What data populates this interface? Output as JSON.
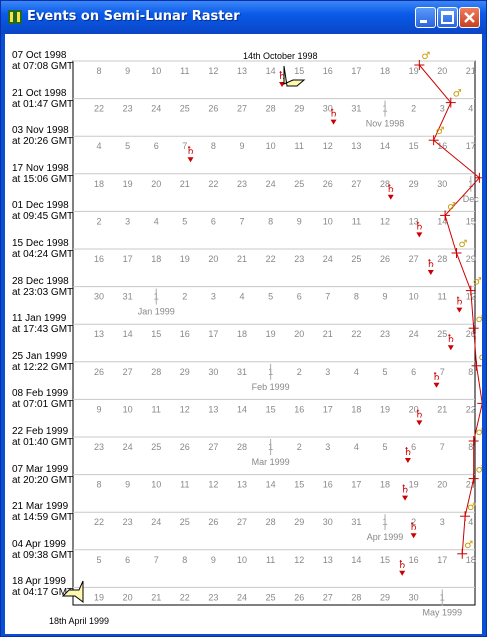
{
  "window": {
    "title": "Events on Semi-Lunar Raster"
  },
  "raster": {
    "rows": [
      {
        "date": "07 Oct  1998",
        "time": "at 07:08 GMT",
        "ticks": [
          {
            "t": "8"
          },
          {
            "t": "9"
          },
          {
            "t": "10"
          },
          {
            "t": "11"
          },
          {
            "t": "12"
          },
          {
            "t": "13"
          },
          {
            "t": "14"
          },
          {
            "t": "15"
          },
          {
            "t": "16"
          },
          {
            "t": "17"
          },
          {
            "t": "18"
          },
          {
            "t": "19"
          },
          {
            "t": "20"
          },
          {
            "t": "21"
          }
        ]
      },
      {
        "date": "21 Oct  1998",
        "time": "at 01:47 GMT",
        "ticks": [
          {
            "t": "22"
          },
          {
            "t": "23"
          },
          {
            "t": "24"
          },
          {
            "t": "25"
          },
          {
            "t": "26"
          },
          {
            "t": "27"
          },
          {
            "t": "28"
          },
          {
            "t": "29"
          },
          {
            "t": "30"
          },
          {
            "t": "31"
          },
          {
            "t": "1",
            "m": "Nov  1998"
          },
          {
            "t": "2"
          },
          {
            "t": "3"
          },
          {
            "t": "4"
          }
        ]
      },
      {
        "date": "03 Nov  1998",
        "time": "at 20:26 GMT",
        "ticks": [
          {
            "t": "4"
          },
          {
            "t": "5"
          },
          {
            "t": "6"
          },
          {
            "t": "7"
          },
          {
            "t": "8"
          },
          {
            "t": "9"
          },
          {
            "t": "10"
          },
          {
            "t": "11"
          },
          {
            "t": "12"
          },
          {
            "t": "13"
          },
          {
            "t": "14"
          },
          {
            "t": "15"
          },
          {
            "t": "16"
          },
          {
            "t": "17"
          }
        ]
      },
      {
        "date": "17 Nov  1998",
        "time": "at 15:06 GMT",
        "ticks": [
          {
            "t": "18"
          },
          {
            "t": "19"
          },
          {
            "t": "20"
          },
          {
            "t": "21"
          },
          {
            "t": "22"
          },
          {
            "t": "23"
          },
          {
            "t": "24"
          },
          {
            "t": "25"
          },
          {
            "t": "26"
          },
          {
            "t": "27"
          },
          {
            "t": "28"
          },
          {
            "t": "29"
          },
          {
            "t": "30"
          },
          {
            "t": "1",
            "m": "Dec"
          }
        ]
      },
      {
        "date": "01 Dec  1998",
        "time": "at 09:45 GMT",
        "ticks": [
          {
            "t": "2"
          },
          {
            "t": "3"
          },
          {
            "t": "4"
          },
          {
            "t": "5"
          },
          {
            "t": "6"
          },
          {
            "t": "7"
          },
          {
            "t": "8"
          },
          {
            "t": "9"
          },
          {
            "t": "10"
          },
          {
            "t": "11"
          },
          {
            "t": "12"
          },
          {
            "t": "13"
          },
          {
            "t": "14"
          },
          {
            "t": "15"
          }
        ]
      },
      {
        "date": "15 Dec  1998",
        "time": "at 04:24 GMT",
        "ticks": [
          {
            "t": "16"
          },
          {
            "t": "17"
          },
          {
            "t": "18"
          },
          {
            "t": "19"
          },
          {
            "t": "20"
          },
          {
            "t": "21"
          },
          {
            "t": "22"
          },
          {
            "t": "23"
          },
          {
            "t": "24"
          },
          {
            "t": "25"
          },
          {
            "t": "26"
          },
          {
            "t": "27"
          },
          {
            "t": "28"
          },
          {
            "t": "29"
          }
        ]
      },
      {
        "date": "28 Dec  1998",
        "time": "at 23:03 GMT",
        "ticks": [
          {
            "t": "30"
          },
          {
            "t": "31"
          },
          {
            "t": "1",
            "m": "Jan  1999"
          },
          {
            "t": "2"
          },
          {
            "t": "3"
          },
          {
            "t": "4"
          },
          {
            "t": "5"
          },
          {
            "t": "6"
          },
          {
            "t": "7"
          },
          {
            "t": "8"
          },
          {
            "t": "9"
          },
          {
            "t": "10"
          },
          {
            "t": "11"
          },
          {
            "t": "12"
          }
        ]
      },
      {
        "date": "11 Jan  1999",
        "time": "at 17:43 GMT",
        "ticks": [
          {
            "t": "13"
          },
          {
            "t": "14"
          },
          {
            "t": "15"
          },
          {
            "t": "16"
          },
          {
            "t": "17"
          },
          {
            "t": "18"
          },
          {
            "t": "19"
          },
          {
            "t": "20"
          },
          {
            "t": "21"
          },
          {
            "t": "22"
          },
          {
            "t": "23"
          },
          {
            "t": "24"
          },
          {
            "t": "25"
          },
          {
            "t": "26"
          }
        ]
      },
      {
        "date": "25 Jan  1999",
        "time": "at 12:22 GMT",
        "ticks": [
          {
            "t": "26"
          },
          {
            "t": "27"
          },
          {
            "t": "28"
          },
          {
            "t": "29"
          },
          {
            "t": "30"
          },
          {
            "t": "31"
          },
          {
            "t": "1",
            "m": "Feb  1999"
          },
          {
            "t": "2"
          },
          {
            "t": "3"
          },
          {
            "t": "4"
          },
          {
            "t": "5"
          },
          {
            "t": "6"
          },
          {
            "t": "7"
          },
          {
            "t": "8"
          }
        ]
      },
      {
        "date": "08 Feb  1999",
        "time": "at 07:01 GMT",
        "ticks": [
          {
            "t": "9"
          },
          {
            "t": "10"
          },
          {
            "t": "11"
          },
          {
            "t": "12"
          },
          {
            "t": "13"
          },
          {
            "t": "14"
          },
          {
            "t": "15"
          },
          {
            "t": "16"
          },
          {
            "t": "17"
          },
          {
            "t": "18"
          },
          {
            "t": "19"
          },
          {
            "t": "20"
          },
          {
            "t": "21"
          },
          {
            "t": "22"
          }
        ]
      },
      {
        "date": "22 Feb  1999",
        "time": "at 01:40 GMT",
        "ticks": [
          {
            "t": "23"
          },
          {
            "t": "24"
          },
          {
            "t": "25"
          },
          {
            "t": "26"
          },
          {
            "t": "27"
          },
          {
            "t": "28"
          },
          {
            "t": "1",
            "m": "Mar  1999"
          },
          {
            "t": "2"
          },
          {
            "t": "3"
          },
          {
            "t": "4"
          },
          {
            "t": "5"
          },
          {
            "t": "6"
          },
          {
            "t": "7"
          },
          {
            "t": "8"
          }
        ]
      },
      {
        "date": "07 Mar  1999",
        "time": "at 20:20 GMT",
        "ticks": [
          {
            "t": "8"
          },
          {
            "t": "9"
          },
          {
            "t": "10"
          },
          {
            "t": "11"
          },
          {
            "t": "12"
          },
          {
            "t": "13"
          },
          {
            "t": "14"
          },
          {
            "t": "15"
          },
          {
            "t": "16"
          },
          {
            "t": "17"
          },
          {
            "t": "18"
          },
          {
            "t": "19"
          },
          {
            "t": "20"
          },
          {
            "t": "21"
          }
        ]
      },
      {
        "date": "21 Mar  1999",
        "time": "at 14:59 GMT",
        "ticks": [
          {
            "t": "22"
          },
          {
            "t": "23"
          },
          {
            "t": "24"
          },
          {
            "t": "25"
          },
          {
            "t": "26"
          },
          {
            "t": "27"
          },
          {
            "t": "28"
          },
          {
            "t": "29"
          },
          {
            "t": "30"
          },
          {
            "t": "31"
          },
          {
            "t": "1",
            "m": "Apr  1999"
          },
          {
            "t": "2"
          },
          {
            "t": "3"
          },
          {
            "t": "4"
          }
        ]
      },
      {
        "date": "04 Apr  1999",
        "time": "at 09:38 GMT",
        "ticks": [
          {
            "t": "5"
          },
          {
            "t": "6"
          },
          {
            "t": "7"
          },
          {
            "t": "8"
          },
          {
            "t": "9"
          },
          {
            "t": "10"
          },
          {
            "t": "11"
          },
          {
            "t": "12"
          },
          {
            "t": "13"
          },
          {
            "t": "14"
          },
          {
            "t": "15"
          },
          {
            "t": "16"
          },
          {
            "t": "17"
          },
          {
            "t": "18"
          }
        ]
      },
      {
        "date": "18 Apr  1999",
        "time": "at 04:17 GMT",
        "ticks": [
          {
            "t": "19"
          },
          {
            "t": "20"
          },
          {
            "t": "21"
          },
          {
            "t": "22"
          },
          {
            "t": "23"
          },
          {
            "t": "24"
          },
          {
            "t": "25"
          },
          {
            "t": "26"
          },
          {
            "t": "27"
          },
          {
            "t": "28"
          },
          {
            "t": "29"
          },
          {
            "t": "30"
          },
          {
            "t": "1",
            "m": "May  1999"
          },
          {
            "t": ""
          }
        ]
      }
    ],
    "start_marker_label": "14th October 1998",
    "end_marker_label": "18th April 1999"
  },
  "series": {
    "red_color": "#cc0000",
    "blue_color": "#4a5ed8",
    "red_track": [
      16.5,
      17.6,
      17.0,
      18.6,
      17.4,
      17.8,
      18.3,
      18.4,
      18.5,
      18.7,
      18.4,
      18.4,
      18.1,
      18.0
    ],
    "blue_track": [
      19.8,
      20.0,
      19.7,
      19.2,
      19.1,
      18.8,
      19.2,
      18.2,
      18.1,
      18.6,
      18.6,
      19.0,
      19.2,
      19.0
    ]
  }
}
